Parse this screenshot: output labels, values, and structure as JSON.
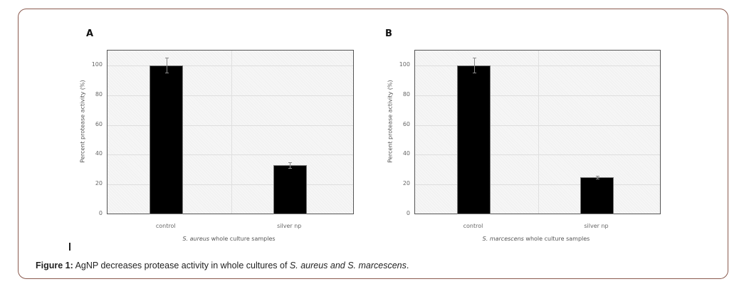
{
  "chart_data": [
    {
      "type": "bar",
      "panel": "A",
      "categories": [
        "control",
        "silver np"
      ],
      "values": [
        100,
        33
      ],
      "error": [
        5,
        2
      ],
      "title": "",
      "xlabel_species": "S. aureus",
      "xlabel_rest": " whole culture samples",
      "xlabel": "S. aureus whole culture samples",
      "ylabel": "Percent protease activity (%)",
      "ylim": [
        0,
        110
      ],
      "yticks": [
        0,
        20,
        40,
        60,
        80,
        100
      ],
      "grid": true,
      "bar_color": "#000000"
    },
    {
      "type": "bar",
      "panel": "B",
      "categories": [
        "control",
        "silver np"
      ],
      "values": [
        100,
        25
      ],
      "error": [
        5,
        1
      ],
      "title": "",
      "xlabel_species": "S. marcescens",
      "xlabel_rest": " whole culture samples",
      "xlabel": "S. marcescens whole culture samples",
      "ylabel": "Percent protease activity (%)",
      "ylim": [
        0,
        110
      ],
      "yticks": [
        0,
        20,
        40,
        60,
        80,
        100
      ],
      "grid": true,
      "bar_color": "#000000"
    }
  ],
  "caption": {
    "label": "Figure 1:",
    "text": " AgNP decreases protease activity in whole cultures of ",
    "species": "S. aureus and S. marcescens",
    "end": "."
  },
  "colors": {
    "card_border": "#8a5a4e",
    "bar": "#000000"
  }
}
